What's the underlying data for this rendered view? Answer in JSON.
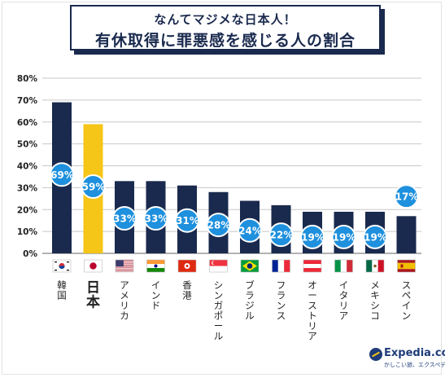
{
  "title": {
    "line1": "なんてマジメな日本人！",
    "line2": "有休取得に罪悪感を感じる人の割合"
  },
  "logo": {
    "name": "Expedia.co.jp",
    "tagline": "かしこい旅、エクスペディア"
  },
  "colors": {
    "bar": "#1a2a4e",
    "highlight": "#f5c518",
    "bubble": "#1e90dd",
    "grid": "#c8c8c8"
  },
  "chart_data": {
    "type": "bar",
    "title": "有休取得に罪悪感を感じる人の割合",
    "categories": [
      "韓国",
      "日本",
      "アメリカ",
      "インド",
      "香港",
      "シンガポール",
      "ブラジル",
      "フランス",
      "オーストリア",
      "イタリア",
      "メキシコ",
      "スペイン"
    ],
    "values": [
      69,
      59,
      33,
      33,
      31,
      28,
      24,
      22,
      19,
      19,
      19,
      17
    ],
    "value_labels": [
      "69%",
      "59%",
      "33%",
      "33%",
      "31%",
      "28%",
      "24%",
      "22%",
      "19%",
      "19%",
      "19%",
      "17%"
    ],
    "highlight_category": "日本",
    "yticks": [
      0,
      10,
      20,
      30,
      40,
      50,
      60,
      70,
      80
    ],
    "ytick_labels": [
      "0%",
      "10%",
      "20%",
      "30%",
      "40%",
      "50%",
      "60%",
      "70%",
      "80%"
    ],
    "ylim": [
      0,
      80
    ],
    "grid": true,
    "flags": [
      "flag-south-korea",
      "flag-japan",
      "flag-usa",
      "flag-india",
      "flag-hong-kong",
      "flag-singapore",
      "flag-brazil",
      "flag-france",
      "flag-austria",
      "flag-italy",
      "flag-mexico",
      "flag-spain"
    ]
  }
}
